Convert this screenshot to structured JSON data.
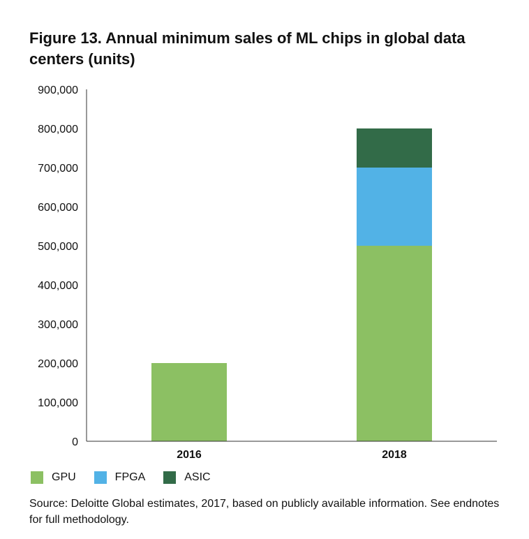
{
  "chart_data": {
    "type": "bar",
    "stacked": true,
    "title": "Figure 13. Annual minimum sales of ML chips in global data centers (units)",
    "categories": [
      "2016",
      "2018"
    ],
    "series": [
      {
        "name": "GPU",
        "values": [
          200000,
          500000
        ],
        "color": "#8CC063"
      },
      {
        "name": "FPGA",
        "values": [
          0,
          200000
        ],
        "color": "#52B2E6"
      },
      {
        "name": "ASIC",
        "values": [
          0,
          100000
        ],
        "color": "#326B48"
      }
    ],
    "ylim": [
      0,
      900000
    ],
    "yticks": [
      0,
      100000,
      200000,
      300000,
      400000,
      500000,
      600000,
      700000,
      800000,
      900000
    ],
    "ytick_labels": [
      "0",
      "100,000",
      "200,000",
      "300,000",
      "400,000",
      "500,000",
      "600,000",
      "700,000",
      "800,000",
      "900,000"
    ],
    "xlabel": "",
    "ylabel": "",
    "grid": false,
    "legend_position": "bottom-left"
  },
  "source": "Source: Deloitte Global estimates, 2017, based on publicly available information. See endnotes for full methodology."
}
